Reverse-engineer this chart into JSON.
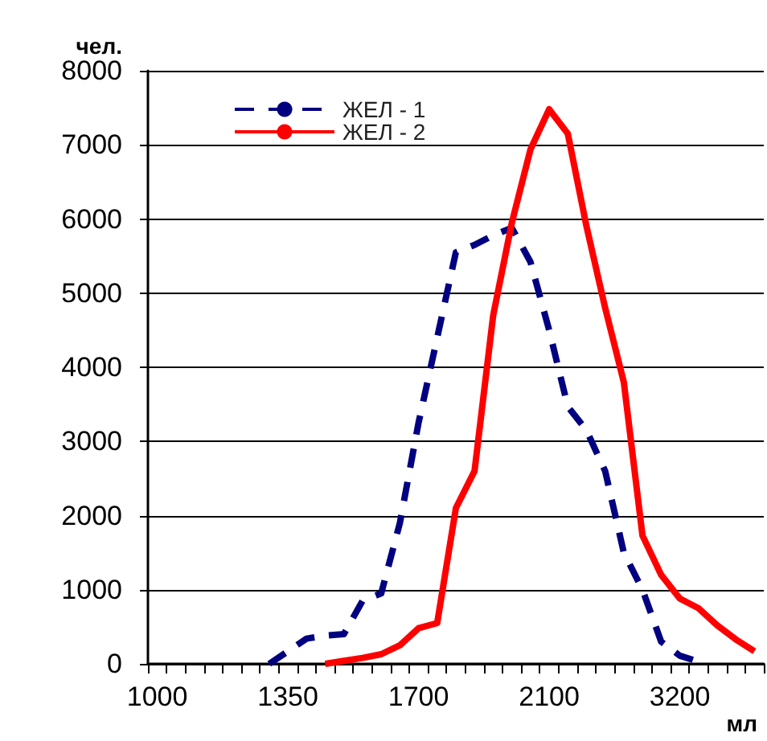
{
  "chart_data": {
    "type": "line",
    "categories": [
      "1000",
      null,
      null,
      null,
      null,
      null,
      null,
      "1350",
      null,
      null,
      null,
      null,
      null,
      null,
      "1700",
      null,
      null,
      null,
      null,
      null,
      null,
      "2100",
      null,
      null,
      null,
      null,
      null,
      null,
      "3200",
      null,
      null,
      null,
      null
    ],
    "xlabel": "мл",
    "ylabel": "чел.",
    "ylim": [
      0,
      8000
    ],
    "yticks": [
      0,
      1000,
      2000,
      3000,
      4000,
      5000,
      6000,
      7000,
      8000
    ],
    "grid": "y",
    "legend": "top left",
    "marker": "none",
    "series": [
      {
        "name": "ЖЕЛ - 1",
        "color": "#000080",
        "line_style": "dashed",
        "values": [
          null,
          null,
          null,
          null,
          null,
          null,
          0,
          170,
          340,
          380,
          400,
          850,
          950,
          1900,
          3250,
          4400,
          5550,
          5650,
          5780,
          5880,
          5420,
          4500,
          3470,
          3150,
          2600,
          1500,
          1000,
          300,
          110,
          30,
          null,
          null,
          null
        ]
      },
      {
        "name": "ЖЕЛ - 2",
        "color": "#ff0000",
        "line_style": "solid",
        "values": [
          null,
          null,
          null,
          null,
          null,
          null,
          null,
          null,
          null,
          0,
          40,
          80,
          130,
          250,
          480,
          550,
          2100,
          2600,
          4700,
          5950,
          6940,
          7480,
          7150,
          5900,
          4800,
          3800,
          1730,
          1200,
          880,
          750,
          520,
          330,
          170
        ]
      }
    ]
  }
}
